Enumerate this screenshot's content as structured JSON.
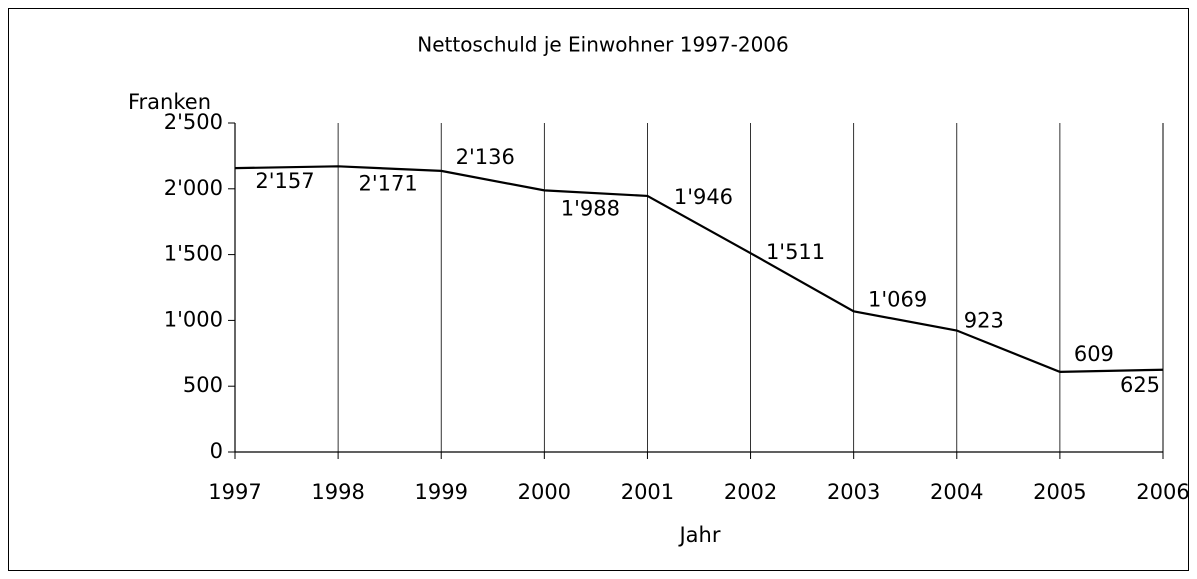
{
  "chart_data": {
    "type": "line",
    "title": "Nettoschuld je Einwohner 1997-2006",
    "y_label": "Franken",
    "x_label": "Jahr",
    "x": [
      1997,
      1998,
      1999,
      2000,
      2001,
      2002,
      2003,
      2004,
      2005,
      2006
    ],
    "series": [
      {
        "color": "#000000",
        "values": [
          2157,
          2171,
          2136,
          1988,
          1946,
          1511,
          1069,
          923,
          609,
          625
        ],
        "value_labels": [
          "2'157",
          "2'171",
          "2'136",
          "1'988",
          "1'946",
          "1'511",
          "1'069",
          "923",
          "609",
          "625"
        ]
      }
    ],
    "xlim": [
      1997,
      2006
    ],
    "xticks": [
      1997,
      1998,
      1999,
      2000,
      2001,
      2002,
      2003,
      2004,
      2005,
      2006
    ],
    "ylim": [
      0,
      2500
    ],
    "yticks": [
      0,
      500,
      {
        "value": 1000,
        "label": "1'000"
      },
      {
        "value": 1500,
        "label": "1'500"
      },
      {
        "value": 2000,
        "label": "2'000"
      },
      {
        "value": 2500,
        "label": "2'500"
      }
    ],
    "grid": true
  }
}
